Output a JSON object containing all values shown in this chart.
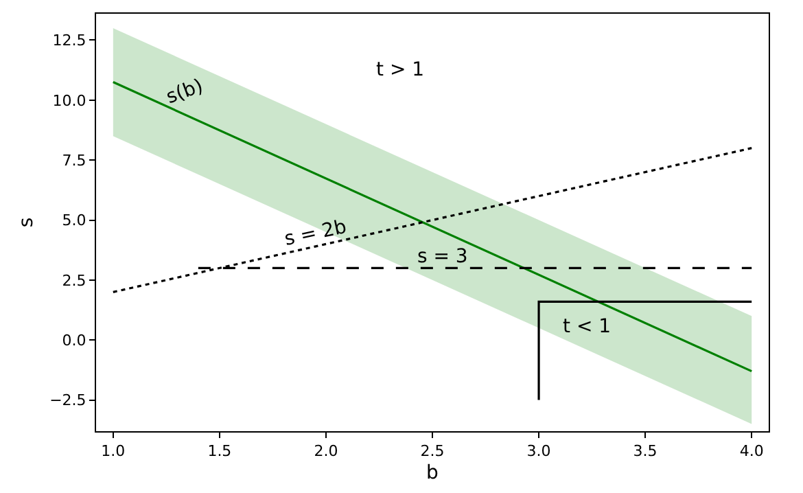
{
  "chart_data": {
    "type": "line",
    "xlabel": "b",
    "ylabel": "s",
    "xlim": [
      0.92,
      4.08
    ],
    "ylim": [
      -3.8,
      13.6
    ],
    "xticks": [
      {
        "value": 1,
        "label": "1.0"
      },
      {
        "value": 1.5,
        "label": "1.5"
      },
      {
        "value": 2,
        "label": "2.0"
      },
      {
        "value": 2.5,
        "label": "2.5"
      },
      {
        "value": 3,
        "label": "3.0"
      },
      {
        "value": 3.5,
        "label": "3.5"
      },
      {
        "value": 4,
        "label": "4.0"
      }
    ],
    "yticks": [
      {
        "value": -2.5,
        "label": "−2.5"
      },
      {
        "value": 0,
        "label": "0.0"
      },
      {
        "value": 2.5,
        "label": "2.5"
      },
      {
        "value": 5,
        "label": "5.0"
      },
      {
        "value": 7.5,
        "label": "7.5"
      },
      {
        "value": 10,
        "label": "10.0"
      },
      {
        "value": 12.5,
        "label": "12.5"
      }
    ],
    "series": [
      {
        "color": "#008000",
        "x": [
          1,
          4
        ],
        "values": [
          10.75,
          -1.3
        ],
        "lower": [
          8.5,
          -3.5
        ],
        "upper": [
          13.0,
          1.0
        ],
        "line_style": "solid"
      },
      {
        "color": "#000000",
        "x": [
          1,
          4
        ],
        "values": [
          2,
          8
        ],
        "line_style": "dotted"
      },
      {
        "color": "#000000",
        "x": [
          1.4,
          4
        ],
        "values": [
          3,
          3
        ],
        "line_style": "dashed"
      },
      {
        "color": "#000000",
        "x": [
          3,
          3,
          4
        ],
        "values": [
          -2.5,
          1.6,
          1.6
        ],
        "line_style": "solid"
      }
    ],
    "annotations": [
      "s(b)",
      "t > 1",
      {
        "text": "s = 2b",
        "x": 1.95,
        "y": 4.45
      },
      "s = 3",
      "t < 1"
    ],
    "grid": false
  }
}
